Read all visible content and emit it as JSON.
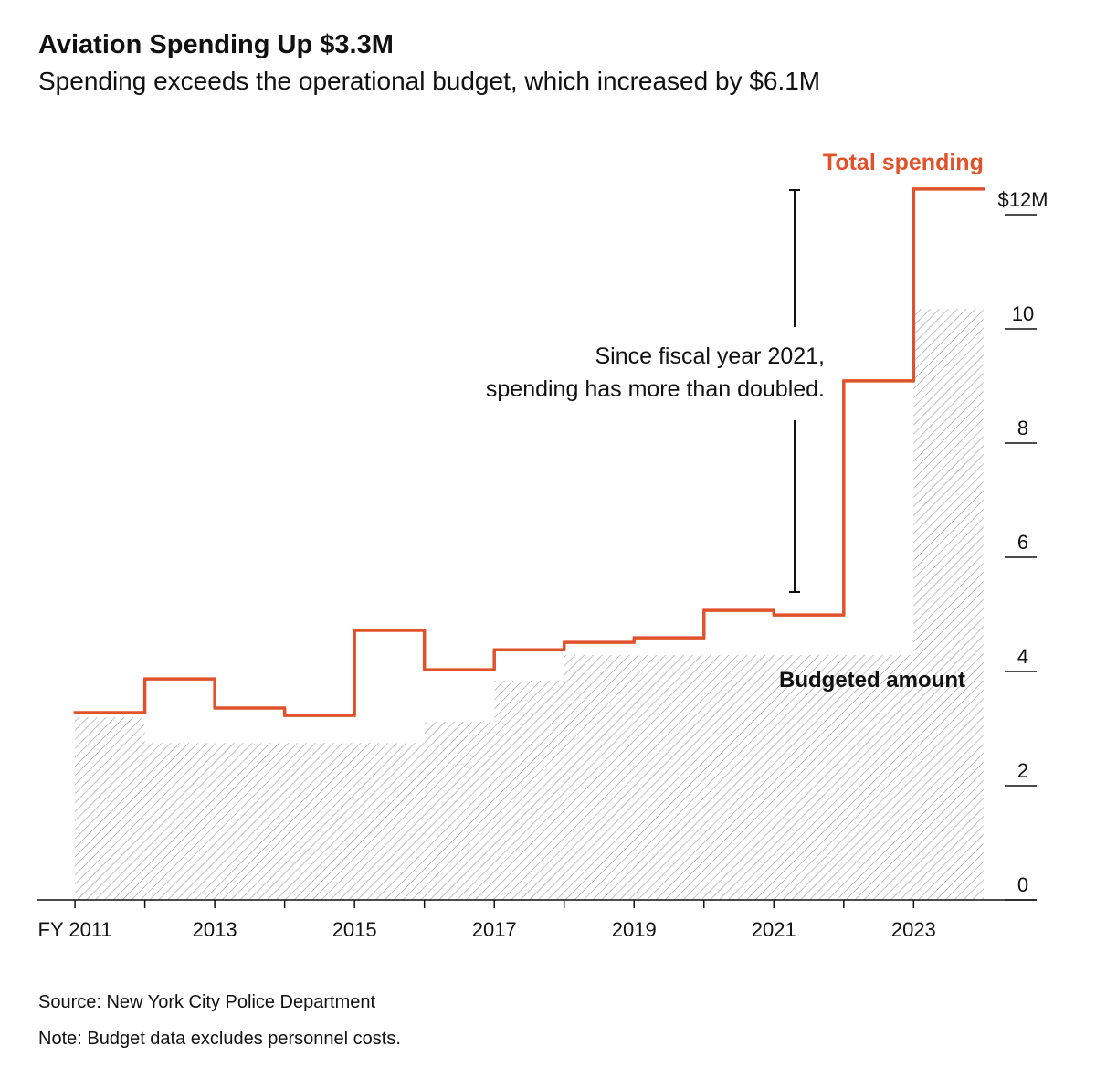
{
  "chart_data": {
    "type": "step",
    "title": "Aviation Spending Up $3.3M",
    "subtitle": "Spending exceeds the operational budget, which increased by $6.1M",
    "x": [
      2011,
      2012,
      2013,
      2014,
      2015,
      2016,
      2017,
      2018,
      2019,
      2020,
      2021,
      2022,
      2023
    ],
    "series": [
      {
        "name": "Budgeted amount",
        "color": "#9a9a9a",
        "values": [
          3.2,
          2.75,
          2.75,
          2.75,
          2.75,
          3.12,
          3.84,
          4.29,
          4.29,
          4.29,
          4.29,
          4.29,
          10.35
        ]
      },
      {
        "name": "Total spending",
        "color": "#e0522b",
        "values": [
          3.28,
          3.87,
          3.36,
          3.23,
          4.72,
          4.03,
          4.38,
          4.51,
          4.59,
          5.07,
          4.99,
          9.09,
          12.45
        ]
      }
    ],
    "xlim": [
      2010.45,
      2024.76
    ],
    "xticks": [
      {
        "value": 2011,
        "label": "FY 2011"
      },
      2013,
      2015,
      2017,
      2019,
      2021,
      2023
    ],
    "ylim": [
      0,
      12
    ],
    "yticks": [
      0,
      2,
      4,
      6,
      8,
      10,
      {
        "value": 12,
        "label": "$12M"
      }
    ],
    "annotation": [
      "Since fiscal year 2021,",
      "spending has more than doubled."
    ],
    "source": "Source: New York City Police Department",
    "note": "Note: Budget data excludes personnel costs."
  }
}
